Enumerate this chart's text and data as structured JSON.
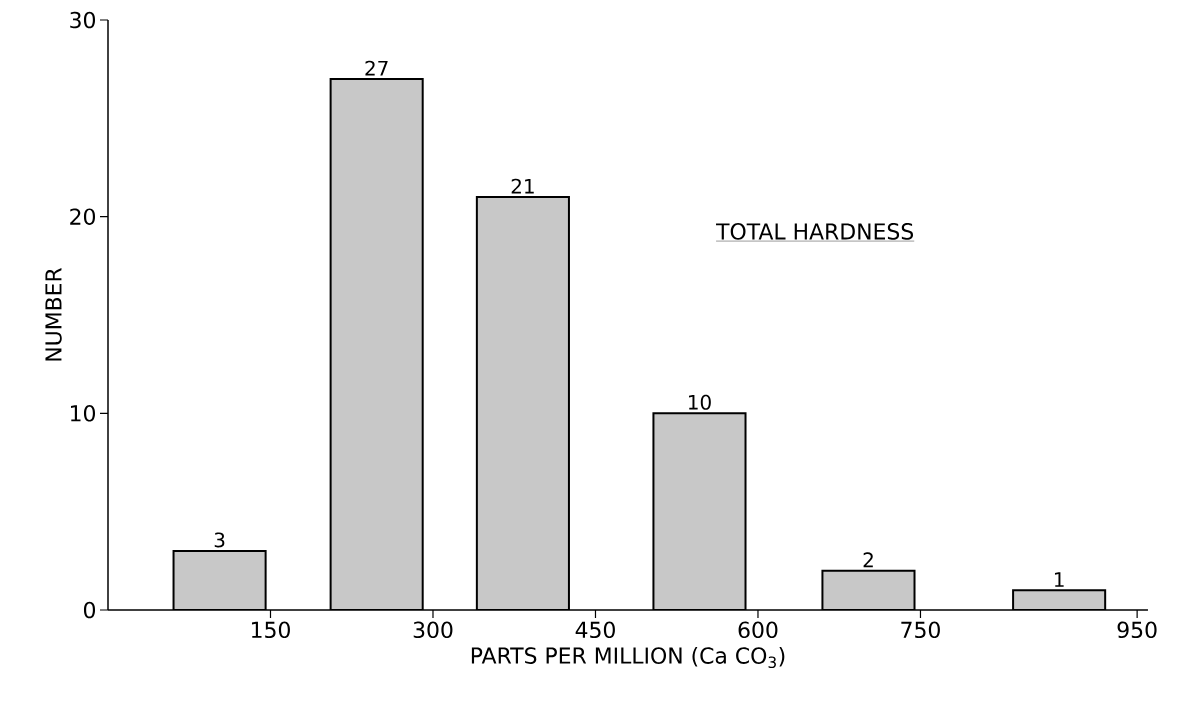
{
  "chart_data": {
    "type": "bar",
    "title": "TOTAL HARDNESS",
    "xlabel": "PARTS PER MILLION (Ca CO$_{3}$)",
    "ylabel": "NUMBER",
    "x": [
      103,
      248,
      383,
      546,
      702,
      878
    ],
    "values": [
      3,
      27,
      21,
      10,
      2,
      1
    ],
    "color": "#c8c8c8",
    "xlim": [
      0,
      960
    ],
    "xticks": [
      150,
      300,
      450,
      600,
      750,
      950
    ],
    "ylim": [
      0,
      30
    ],
    "yticks": [
      0,
      10,
      20,
      30
    ],
    "data_labels": true
  }
}
